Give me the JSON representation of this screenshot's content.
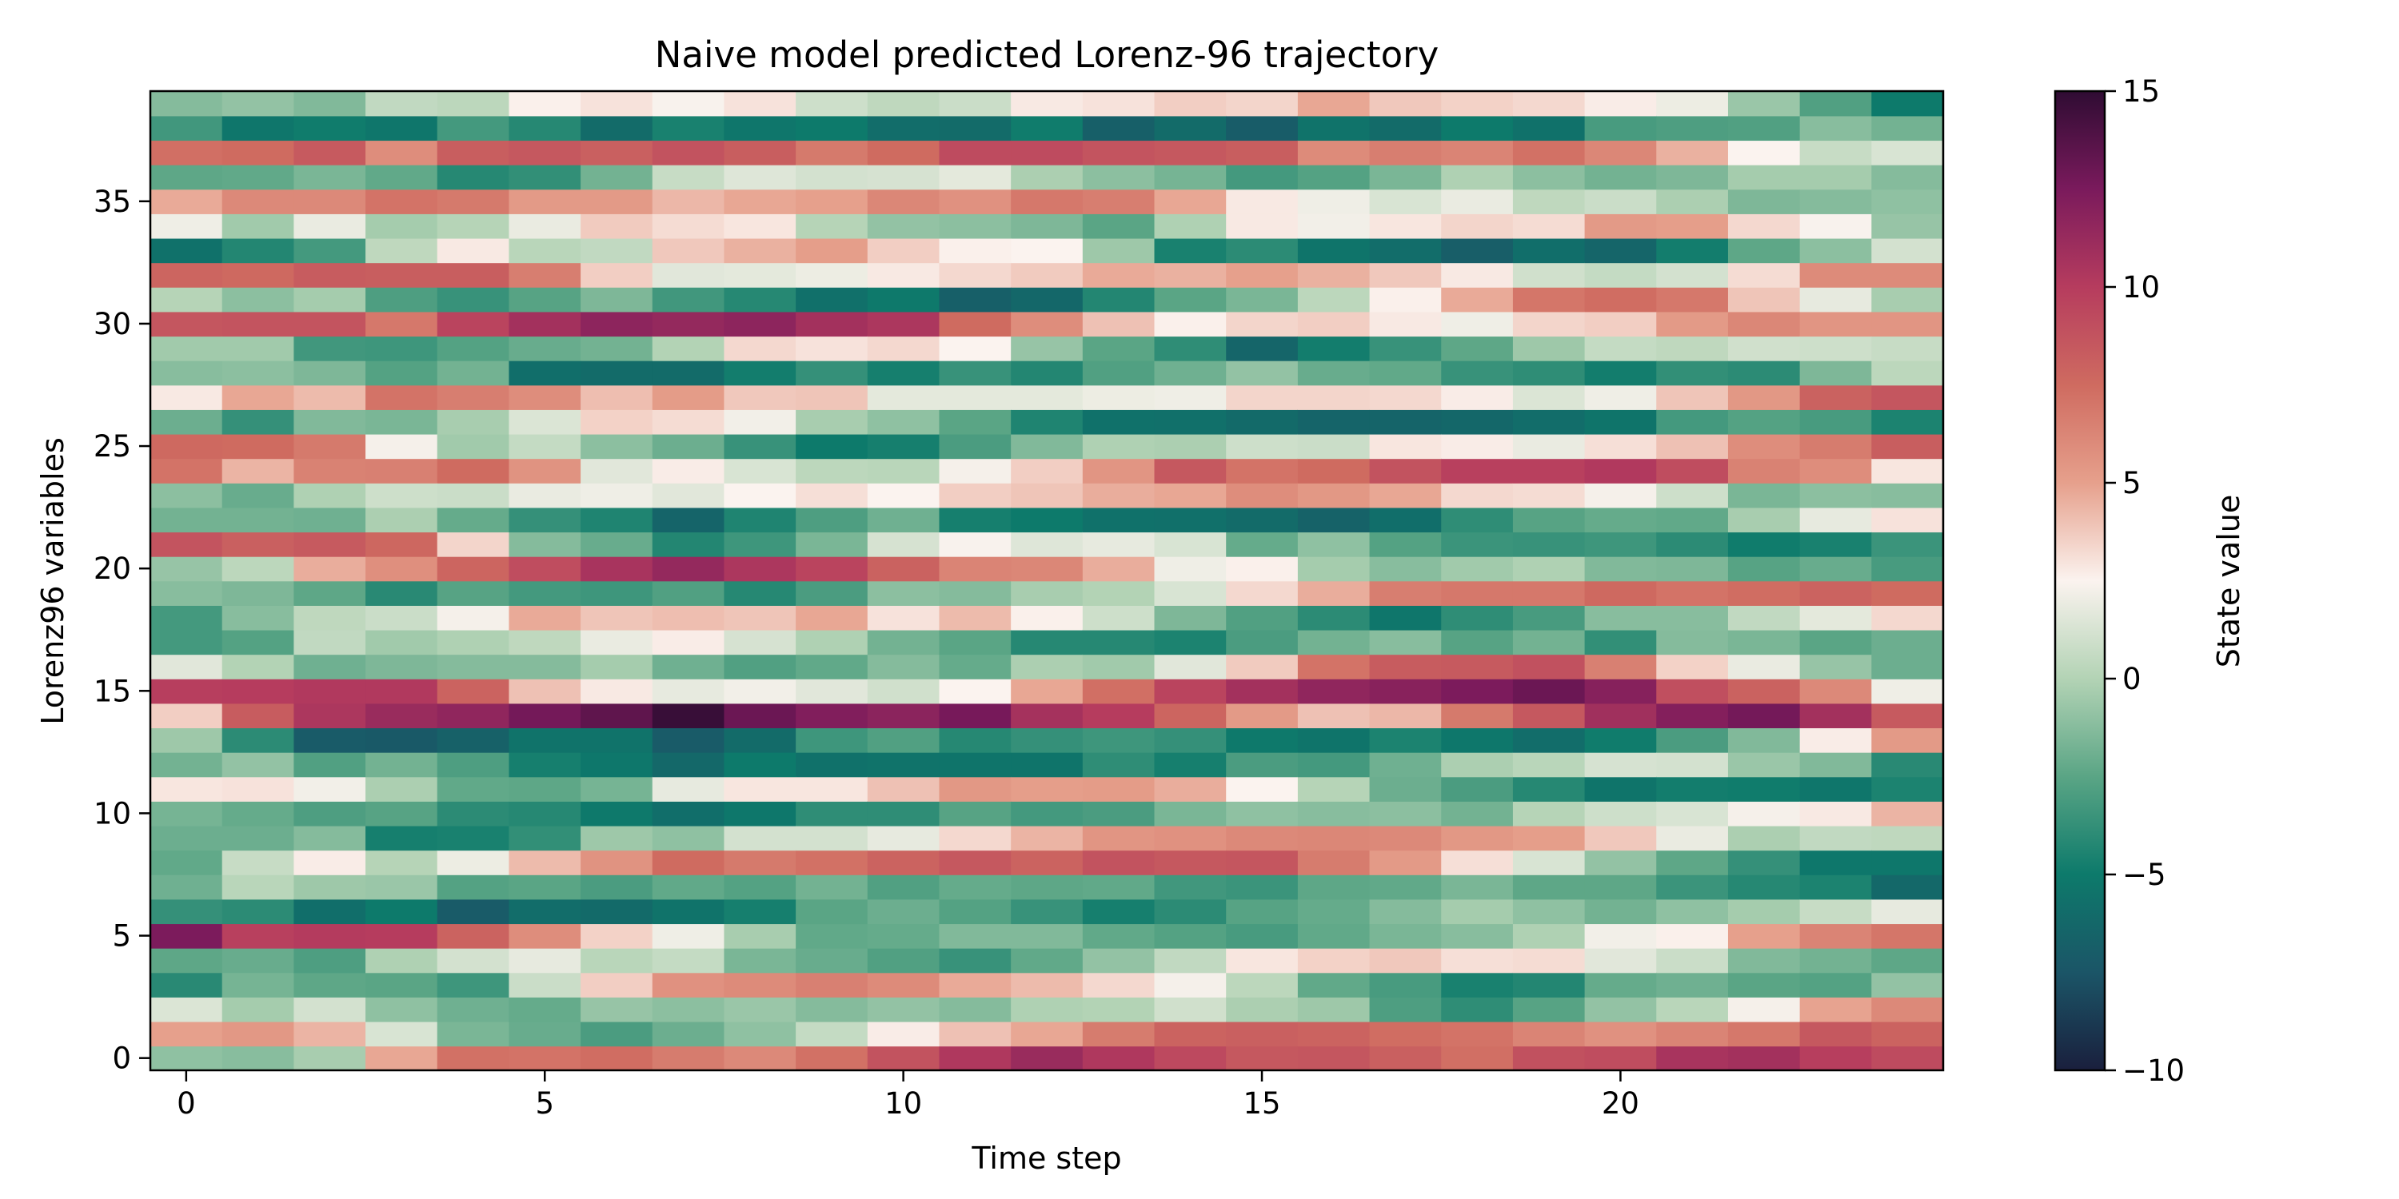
{
  "chart_data": {
    "type": "heatmap",
    "title": "Naive model predicted Lorenz-96 trajectory",
    "xlabel": "Time step",
    "ylabel": "Lorenz96 variables",
    "xlim": [
      -0.5,
      24.5
    ],
    "ylim": [
      -0.5,
      39.5
    ],
    "x_ticks": [
      0,
      5,
      10,
      15,
      20
    ],
    "y_ticks": [
      0,
      5,
      10,
      15,
      20,
      25,
      30,
      35
    ],
    "n_time_steps": 25,
    "n_variables": 40,
    "colorbar": {
      "label": "State value",
      "vmin": -10,
      "vmax": 15,
      "ticks": [
        -10,
        -5,
        0,
        5,
        10,
        15
      ],
      "tick_labels": [
        "−10",
        "−5",
        "0",
        "5",
        "10",
        "15"
      ],
      "colormap_stops": [
        {
          "value": -10,
          "color": "#1a1f3d"
        },
        {
          "value": -7.5,
          "color": "#1b5567"
        },
        {
          "value": -5,
          "color": "#0d7a6b"
        },
        {
          "value": -2.5,
          "color": "#5aa585"
        },
        {
          "value": 0,
          "color": "#b3d3b5"
        },
        {
          "value": 2.5,
          "color": "#fbf3ef"
        },
        {
          "value": 5,
          "color": "#e6a08c"
        },
        {
          "value": 7.5,
          "color": "#cf6b60"
        },
        {
          "value": 10,
          "color": "#b63c5e"
        },
        {
          "value": 12.5,
          "color": "#7a1a5c"
        },
        {
          "value": 15,
          "color": "#2f0c33"
        }
      ]
    },
    "z": [
      [
        -1.0,
        5.0,
        1.4,
        -4.1,
        -2.4,
        12.4,
        -3.7,
        -1.9,
        -2.3,
        -2.0,
        -1.7,
        2.9,
        -1.8,
        -0.6,
        3.6,
        9.9,
        1.6,
        -3.2,
        -3.2,
        -1.2,
        -0.8,
        8.7,
        -1.8,
        -1.1,
        7.1,
        7.6,
        -2.0,
        2.8,
        -1.2,
        -0.5,
        8.6,
        0.1,
        7.8,
        -5.6,
        2.1,
        4.7,
        -2.4,
        7.3,
        -3.3,
        -1.3
      ],
      [
        -1.2,
        5.4,
        -0.4,
        -1.7,
        -2.1,
        9.8,
        -4.0,
        0.2,
        0.7,
        -2.0,
        -2.2,
        3.0,
        -0.9,
        -4.0,
        8.3,
        10.0,
        0.0,
        -2.7,
        -1.2,
        -1.5,
        0.3,
        8.1,
        -1.8,
        -2.1,
        4.4,
        7.5,
        -3.7,
        4.8,
        -1.1,
        -0.5,
        8.7,
        -1.1,
        7.6,
        -4.3,
        -0.5,
        6.1,
        -2.3,
        7.5,
        -5.3,
        -0.9
      ],
      [
        -0.3,
        4.4,
        1.1,
        -2.4,
        -2.9,
        10.1,
        -5.8,
        -0.6,
        2.7,
        -1.3,
        -2.9,
        2.2,
        -2.8,
        -7.1,
        10.4,
        10.2,
        -1.9,
        0.5,
        0.4,
        -2.4,
        4.6,
        8.4,
        -1.9,
        -0.1,
        6.4,
        6.8,
        -1.4,
        4.2,
        -1.5,
        -3.3,
        8.7,
        -0.4,
        8.3,
        -3.2,
        1.9,
        6.1,
        -1.6,
        8.4,
        -4.9,
        -1.4
      ],
      [
        4.8,
        1.3,
        -1.0,
        -2.5,
        -0.1,
        10.0,
        -5.0,
        -0.7,
        0.1,
        -4.7,
        -2.6,
        -0.2,
        -1.8,
        -7.2,
        11.2,
        10.2,
        -1.5,
        -0.5,
        0.8,
        -4.1,
        5.8,
        7.7,
        -0.2,
        0.9,
        6.5,
        2.3,
        -1.6,
        7.1,
        -2.7,
        -3.4,
        6.9,
        -2.9,
        8.2,
        0.4,
        -0.4,
        7.1,
        -2.3,
        5.9,
        -5.3,
        0.5
      ],
      [
        7.2,
        -1.6,
        -1.9,
        -3.4,
        1.1,
        7.9,
        -7.1,
        -2.7,
        2.0,
        -4.6,
        -4.0,
        -2.3,
        -2.9,
        -6.7,
        11.6,
        7.9,
        -1.3,
        -0.1,
        2.3,
        -2.6,
        7.8,
        3.4,
        -2.2,
        0.8,
        7.5,
        -0.5,
        -0.3,
        6.6,
        -1.8,
        -2.7,
        9.6,
        -3.6,
        8.2,
        2.8,
        0.1,
        6.8,
        -4.2,
        8.2,
        -3.2,
        0.3
      ],
      [
        7.1,
        -2.1,
        -2.2,
        0.8,
        1.8,
        5.9,
        -5.9,
        -2.5,
        4.2,
        -3.8,
        -4.2,
        -2.4,
        -4.7,
        -5.5,
        12.7,
        4.0,
        -1.3,
        0.4,
        4.7,
        -3.2,
        9.1,
        -1.3,
        -3.7,
        1.9,
        5.6,
        0.6,
        1.4,
        5.9,
        -5.8,
        -2.1,
        10.8,
        -2.6,
        6.6,
        0.2,
        1.9,
        5.3,
        -3.8,
        8.5,
        -4.2,
        2.6
      ],
      [
        7.4,
        -3.0,
        -0.8,
        3.6,
        0.2,
        3.5,
        -6.1,
        -3.0,
        5.6,
        -0.6,
        -5.1,
        -1.7,
        -5.2,
        -5.5,
        13.4,
        2.8,
        -0.4,
        1.9,
        3.9,
        -3.4,
        10.6,
        -2.1,
        -4.4,
        2.1,
        1.6,
        -1.1,
        3.5,
        4.1,
        -6.0,
        -1.8,
        11.7,
        -1.5,
        3.6,
        0.5,
        3.7,
        5.3,
        -1.8,
        8.1,
        -6.0,
        3.0
      ],
      [
        6.7,
        -2.0,
        -1.1,
        5.7,
        0.6,
        2.1,
        -5.5,
        -2.3,
        7.5,
        -1.0,
        -5.8,
        1.8,
        -6.2,
        -7.1,
        14.7,
        1.8,
        -1.9,
        2.7,
        4.1,
        -2.8,
        11.4,
        -4.3,
        -6.5,
        1.6,
        2.7,
        -2.0,
        3.2,
        5.2,
        -6.0,
        0.0,
        11.4,
        -3.3,
        1.6,
        3.8,
        3.2,
        4.3,
        0.7,
        8.8,
        -4.6,
        2.4
      ],
      [
        6.1,
        -1.0,
        -0.7,
        6.0,
        -1.6,
        -0.3,
        -4.7,
        -2.7,
        6.8,
        1.1,
        -5.2,
        2.9,
        -5.0,
        -6.0,
        13.0,
        2.2,
        -2.8,
        1.2,
        3.9,
        -4.2,
        10.4,
        -3.4,
        -4.4,
        2.5,
        1.3,
        -3.6,
        2.2,
        3.8,
        -4.8,
        3.3,
        11.7,
        -4.2,
        1.7,
        4.5,
        2.9,
        4.8,
        1.5,
        8.2,
        -5.3,
        3.0
      ],
      [
        7.2,
        0.6,
        -1.3,
        6.5,
        -2.1,
        -2.3,
        -2.5,
        -1.8,
        7.2,
        1.1,
        -3.9,
        2.9,
        -5.6,
        -3.4,
        12.2,
        1.6,
        -2.3,
        -0.1,
        4.8,
        -3.0,
        9.6,
        -1.6,
        -2.9,
        3.1,
        0.3,
        -5.0,
        -0.3,
        3.9,
        -3.7,
        3.0,
        10.8,
        -5.7,
        2.0,
        5.1,
        0.1,
        5.0,
        1.1,
        6.8,
        -5.0,
        0.9
      ],
      [
        8.8,
        2.7,
        -0.9,
        6.0,
        -2.8,
        -2.2,
        -2.0,
        -2.8,
        7.9,
        1.8,
        -3.9,
        4.0,
        -5.5,
        -2.8,
        11.8,
        1.0,
        -1.3,
        -1.8,
        3.0,
        -1.1,
        8.0,
        1.2,
        -1.9,
        2.5,
        0.2,
        -4.7,
        -1.0,
        1.7,
        -4.7,
        3.3,
        10.4,
        -5.1,
        2.8,
        3.6,
        -0.9,
        6.2,
        1.2,
        7.5,
        -5.9,
        0.4
      ],
      [
        10.3,
        4.0,
        -1.3,
        4.7,
        -3.6,
        -1.4,
        -2.7,
        -2.2,
        8.5,
        3.3,
        -2.6,
        5.4,
        -5.4,
        -4.2,
        12.6,
        2.5,
        -2.2,
        -2.5,
        4.2,
        -1.3,
        6.3,
        2.4,
        -4.7,
        3.6,
        2.3,
        -3.0,
        -2.5,
        1.7,
        -3.6,
        2.5,
        7.5,
        -6.8,
        3.3,
        2.6,
        -1.1,
        5.7,
        1.7,
        9.2,
        -6.0,
        0.8
      ],
      [
        11.2,
        4.8,
        -0.1,
        4.2,
        -2.3,
        -1.4,
        -3.6,
        -2.4,
        7.9,
        4.4,
        -3.2,
        5.1,
        -5.4,
        -3.7,
        10.7,
        4.8,
        -0.2,
        -4.2,
        2.6,
        -0.3,
        6.2,
        1.5,
        -5.0,
        3.9,
        3.6,
        -1.4,
        -4.4,
        1.7,
        -4.3,
        -0.8,
        5.9,
        -6.3,
        3.7,
        2.5,
        -1.5,
        6.9,
        -0.2,
        9.2,
        -4.9,
        2.8
      ],
      [
        10.3,
        6.7,
        0.0,
        3.3,
        -0.9,
        -2.3,
        -4.7,
        -2.3,
        8.8,
        5.5,
        -3.0,
        5.2,
        -3.9,
        -3.4,
        10.0,
        7.3,
        -0.5,
        -4.2,
        0.9,
        0.0,
        4.6,
        1.8,
        -5.6,
        4.6,
        5.5,
        -0.1,
        -5.6,
        2.0,
        -2.8,
        -2.5,
        4.0,
        -4.3,
        4.7,
        -0.6,
        -2.5,
        6.6,
        -1.1,
        8.7,
        -6.8,
        3.0
      ],
      [
        9.3,
        7.9,
        1.0,
        2.3,
        0.5,
        -2.7,
        -4.0,
        -3.3,
        8.5,
        5.7,
        -1.6,
        4.6,
        -4.7,
        -3.7,
        7.8,
        9.6,
        1.6,
        -4.5,
        -1.5,
        1.3,
        2.1,
        1.3,
        -5.7,
        4.8,
        8.5,
        -0.2,
        -5.7,
        2.1,
        -1.9,
        -3.9,
        2.6,
        -2.5,
        4.5,
        -4.6,
        -0.1,
        4.8,
        -1.7,
        8.5,
        -6.0,
        3.6
      ],
      [
        8.5,
        8.1,
        -0.2,
        0.3,
        2.9,
        -3.1,
        -2.6,
        -3.5,
        8.6,
        6.1,
        -1.0,
        2.5,
        -3.0,
        -5.1,
        5.3,
        10.8,
        3.7,
        -3.0,
        -2.8,
        3.3,
        2.6,
        -2.2,
        -6.0,
        5.9,
        7.1,
        0.9,
        -6.1,
        3.4,
        -0.9,
        -6.4,
        3.4,
        -1.6,
        5.0,
        -4.0,
        2.8,
        2.8,
        -3.2,
        8.2,
        -7.0,
        3.4
      ],
      [
        8.6,
        7.9,
        -0.6,
        -2.3,
        3.5,
        -2.3,
        -2.2,
        -2.4,
        6.7,
        6.2,
        -1.2,
        0.1,
        -3.2,
        -5.4,
        4.0,
        11.6,
        7.1,
        -1.8,
        -4.0,
        4.6,
        -0.4,
        -1.0,
        -6.6,
        5.4,
        7.5,
        0.8,
        -6.5,
        3.4,
        -2.1,
        -4.8,
        3.6,
        0.3,
        4.5,
        -5.4,
        2.2,
        2.1,
        -2.7,
        6.0,
        -5.5,
        4.8
      ],
      [
        8.1,
        7.4,
        -2.9,
        -3.1,
        3.8,
        -1.6,
        -1.3,
        -2.3,
        5.3,
        6.1,
        -1.1,
        -2.0,
        -1.9,
        -4.5,
        4.3,
        11.9,
        8.3,
        -1.2,
        -5.3,
        6.6,
        -1.2,
        -2.7,
        -5.8,
        4.8,
        8.8,
        2.9,
        -6.5,
        3.3,
        -2.3,
        -3.6,
        2.8,
        2.6,
        3.8,
        -5.9,
        2.9,
        1.3,
        -1.6,
        6.6,
        -6.0,
        3.8
      ],
      [
        7.3,
        7.1,
        -3.9,
        -4.6,
        3.1,
        -1.2,
        -0.4,
        -1.6,
        3.1,
        5.4,
        -1.8,
        -3.0,
        -0.2,
        -5.2,
        6.8,
        12.4,
        8.4,
        -2.6,
        -3.9,
        6.9,
        -0.5,
        -3.5,
        -3.9,
        3.3,
        9.8,
        2.7,
        -6.3,
        2.7,
        -3.6,
        -2.4,
        2.1,
        4.7,
        2.8,
        -6.9,
        3.4,
        1.9,
        -0.1,
        6.3,
        -5.0,
        3.5
      ],
      [
        8.9,
        6.3,
        -2.6,
        -4.3,
        3.2,
        -0.1,
        -1.0,
        -2.4,
        1.3,
        5.1,
        0.1,
        -4.2,
        0.2,
        -5.9,
        8.5,
        13.0,
        8.9,
        -1.8,
        -3.1,
        6.9,
        -0.1,
        -3.6,
        -2.6,
        3.2,
        9.8,
        1.9,
        -5.9,
        1.4,
        -3.9,
        -0.6,
        3.4,
        7.0,
        1.0,
        -5.8,
        3.2,
        0.4,
        -1.1,
        7.2,
        -5.6,
        3.3
      ],
      [
        9.1,
        5.7,
        -0.9,
        -2.2,
        1.6,
        2.2,
        -1.8,
        -2.4,
        -0.9,
        3.8,
        0.9,
        -5.4,
        1.2,
        -4.9,
        10.9,
        12.0,
        6.5,
        -3.8,
        -1.2,
        7.6,
        -1.4,
        -3.4,
        -2.2,
        2.3,
        10.2,
        3.1,
        -5.4,
        2.1,
        -4.8,
        0.6,
        3.6,
        7.4,
        0.6,
        -6.4,
        5.3,
        0.8,
        -1.8,
        6.2,
        -3.1,
        2.7
      ],
      [
        10.6,
        6.3,
        0.2,
        -1.9,
        0.8,
        2.6,
        -1.0,
        -3.5,
        -2.4,
        1.9,
        1.3,
        -4.8,
        1.1,
        -3.0,
        12.1,
        9.0,
        3.5,
        -1.3,
        -1.2,
        7.1,
        -1.5,
        -4.0,
        -2.3,
        0.9,
        9.1,
        4.0,
        -3.2,
        3.9,
        -3.8,
        0.4,
        5.3,
        6.9,
        1.1,
        -4.8,
        5.1,
        -0.2,
        -1.5,
        4.5,
        -2.9,
        2.0
      ],
      [
        10.8,
        6.9,
        2.3,
        -2.5,
        -1.4,
        5.0,
        -0.4,
        -4.2,
        -3.7,
        -0.2,
        2.3,
        -4.9,
        -0.7,
        -1.4,
        12.7,
        8.0,
        1.9,
        -1.6,
        0.5,
        7.4,
        -2.6,
        -4.9,
        -0.3,
        -1.6,
        6.4,
        5.9,
        -2.7,
        5.4,
        -4.0,
        1.0,
        6.2,
        3.9,
        3.2,
        -2.4,
        3.3,
        -1.5,
        -0.4,
        2.5,
        -2.8,
        -0.7
      ],
      [
        9.9,
        8.5,
        4.9,
        -2.7,
        -1.8,
        6.3,
        0.7,
        -4.5,
        -5.2,
        0.5,
        2.8,
        -5.3,
        -1.4,
        2.7,
        10.8,
        6.1,
        -0.8,
        -2.5,
        1.7,
        7.9,
        -2.1,
        -4.6,
        1.8,
        -1.1,
        5.9,
        6.7,
        -3.1,
        8.0,
        -1.5,
        0.9,
        5.5,
        1.8,
        6.0,
        -1.1,
        2.4,
        -1.3,
        -0.4,
        0.7,
        -1.2,
        -2.8
      ],
      [
        9.2,
        7.9,
        6.1,
        -0.9,
        -2.4,
        7.0,
        1.8,
        -6.2,
        -5.2,
        0.4,
        4.4,
        -4.5,
        -4.1,
        5.3,
        8.4,
        2.1,
        -2.0,
        -2.0,
        3.3,
        7.5,
        -3.1,
        -3.5,
        3.0,
        -1.2,
        2.9,
        8.2,
        -4.5,
        8.6,
        0.3,
        0.7,
        5.5,
        -0.3,
        6.0,
        1.1,
        -0.8,
        -1.0,
        -1.3,
        1.3,
        -1.8,
        -5.0
      ]
    ]
  }
}
